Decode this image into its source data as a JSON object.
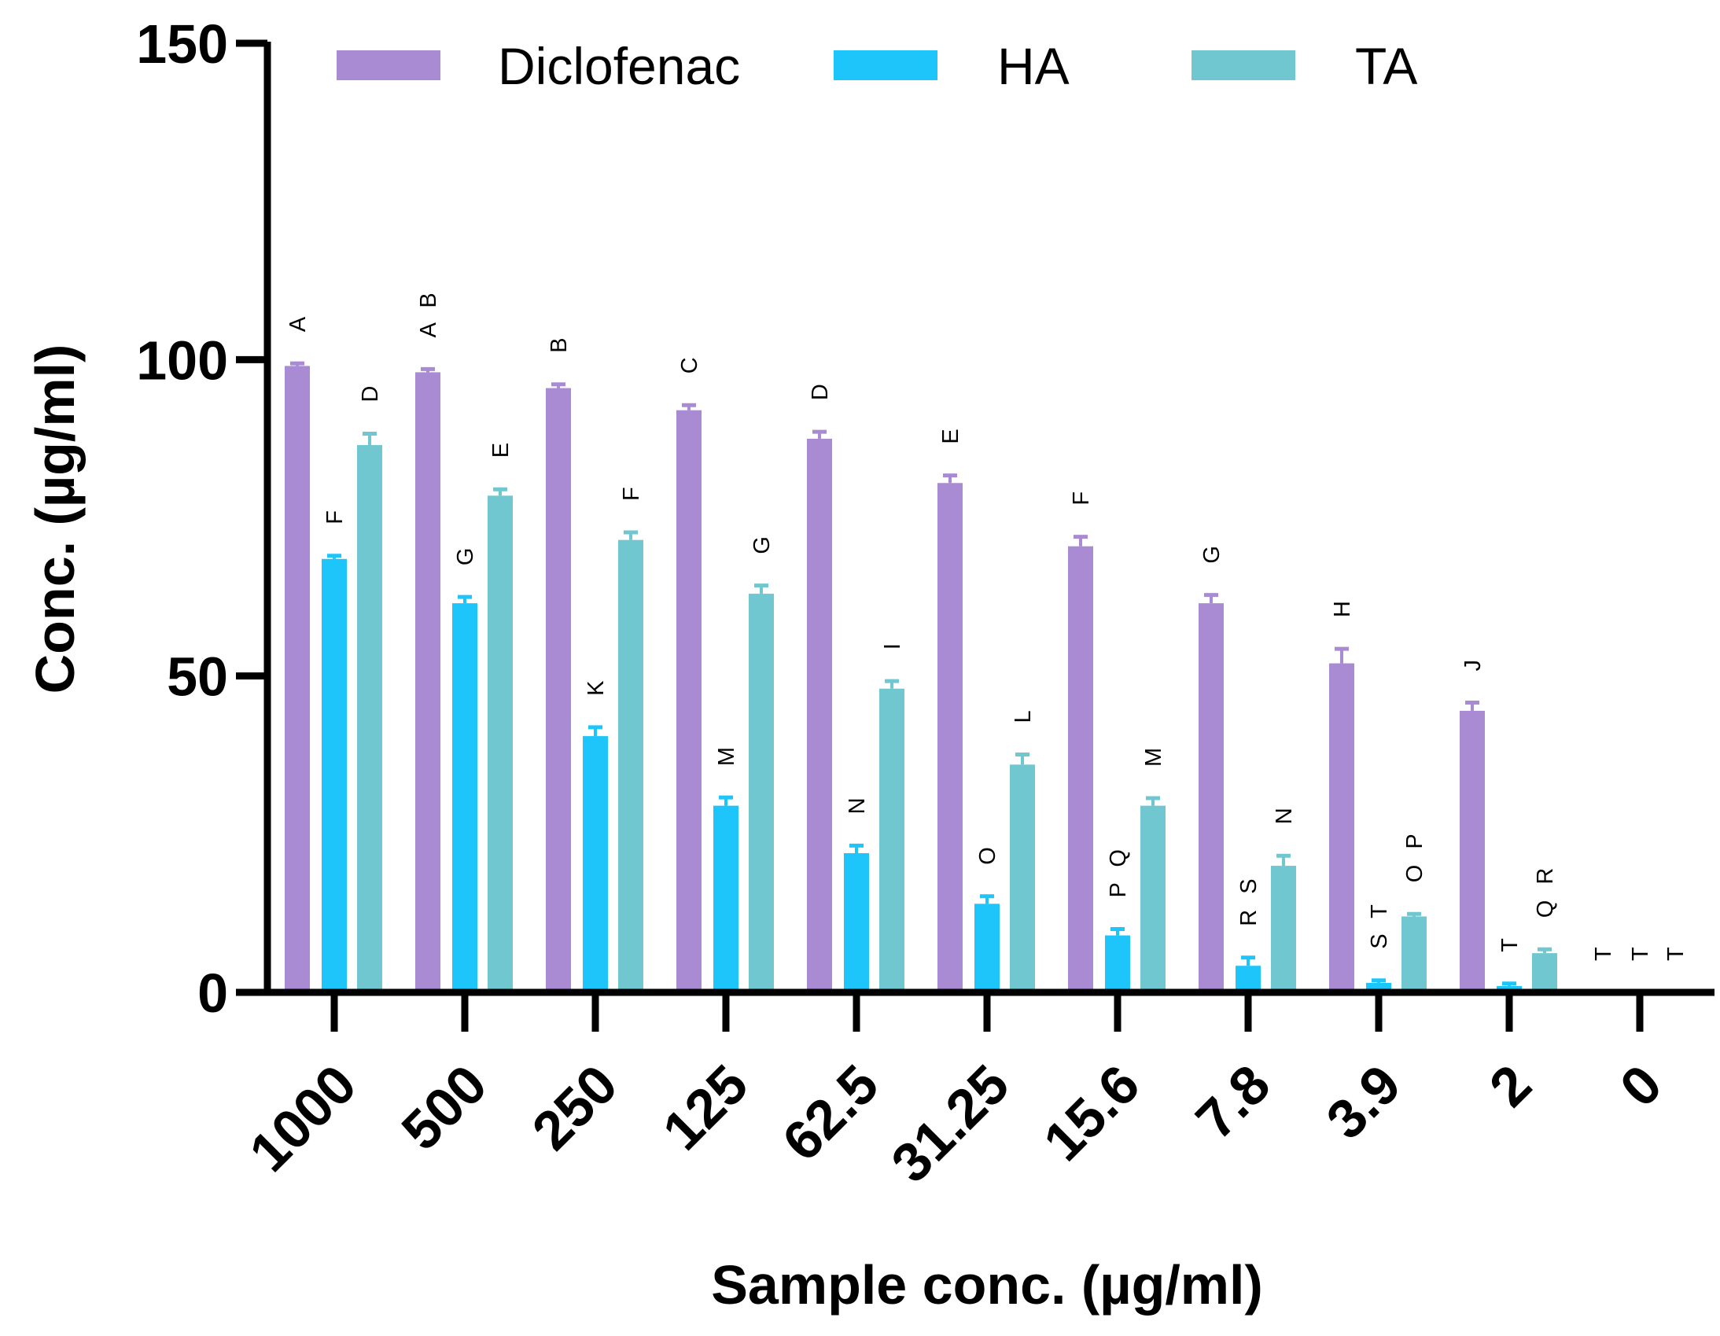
{
  "chart_data": {
    "type": "bar",
    "title": "",
    "xlabel": "Sample conc. (µg/ml)",
    "ylabel": "Conc. (µg/ml)",
    "ylim": [
      0,
      150
    ],
    "yticks": [
      0,
      50,
      100,
      150
    ],
    "grid": false,
    "legend_position": "top",
    "categories": [
      "1000",
      "500",
      "250",
      "125",
      "62.5",
      "31.25",
      "15.6",
      "7.8",
      "3.9",
      "2",
      "0"
    ],
    "series": [
      {
        "name": "Diclofenac",
        "color": "#A88BD3",
        "values": [
          99,
          98,
          95.5,
          92,
          87.5,
          80.5,
          70.5,
          61.5,
          52,
          44.5,
          0
        ],
        "errors": [
          0.4,
          0.5,
          0.6,
          0.8,
          1.1,
          1.2,
          1.5,
          1.3,
          2.3,
          1.3,
          0
        ],
        "sig_labels": [
          "A",
          "A B",
          "B",
          "C",
          "D",
          "E",
          "F",
          "G",
          "H",
          "J",
          "T"
        ]
      },
      {
        "name": "HA",
        "color": "#1EC5FA",
        "values": [
          68.5,
          61.5,
          40.5,
          29.5,
          22,
          14,
          9,
          4.2,
          1.5,
          1,
          0
        ],
        "errors": [
          0.5,
          1,
          1.4,
          1.3,
          1.2,
          1.2,
          1,
          1.3,
          0.4,
          0.4,
          0
        ],
        "sig_labels": [
          "F",
          "G",
          "K",
          "M",
          "N",
          "O",
          "P Q",
          "R S",
          "S T",
          "T",
          "T"
        ]
      },
      {
        "name": "TA",
        "color": "#71C7CF",
        "values": [
          86.5,
          78.5,
          71.5,
          63,
          48,
          36,
          29.5,
          20,
          12,
          6.2,
          0
        ],
        "errors": [
          1.8,
          1,
          1.2,
          1.3,
          1.2,
          1.6,
          1.2,
          1.6,
          0.4,
          0.6,
          0
        ],
        "sig_labels": [
          "D",
          "E",
          "F",
          "G",
          "I",
          "L",
          "M",
          "N",
          "O P",
          "Q R",
          "T"
        ]
      }
    ]
  }
}
